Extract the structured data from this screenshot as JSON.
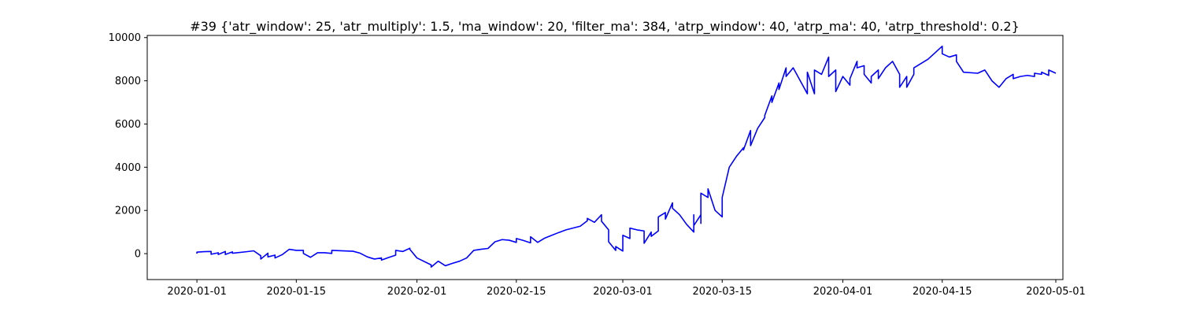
{
  "chart_data": {
    "type": "line",
    "title": "#39 {'atr_window': 25, 'atr_multiply': 1.5, 'ma_window': 20, 'filter_ma': 384, 'atrp_window': 40, 'atrp_ma': 40, 'atrp_threshold': 0.2}",
    "xlabel": "",
    "ylabel": "",
    "x_axis_type": "date",
    "xlim": [
      "2019-12-25",
      "2020-05-02"
    ],
    "ylim": [
      -1200,
      10100
    ],
    "x_ticks": [
      "2020-01-01",
      "2020-01-15",
      "2020-02-01",
      "2020-02-15",
      "2020-03-01",
      "2020-03-15",
      "2020-04-01",
      "2020-04-15",
      "2020-05-01"
    ],
    "y_ticks": [
      0,
      2000,
      4000,
      6000,
      8000,
      10000
    ],
    "grid": false,
    "legend": "none",
    "series": [
      {
        "color": "#0000ff",
        "points": [
          [
            "2020-01-01",
            0
          ],
          [
            "2020-01-01",
            70
          ],
          [
            "2020-01-02",
            90
          ],
          [
            "2020-01-03",
            100
          ],
          [
            "2020-01-03",
            -30
          ],
          [
            "2020-01-04",
            40
          ],
          [
            "2020-01-04",
            -40
          ],
          [
            "2020-01-05",
            100
          ],
          [
            "2020-01-05",
            -40
          ],
          [
            "2020-01-06",
            80
          ],
          [
            "2020-01-06",
            20
          ],
          [
            "2020-01-08",
            90
          ],
          [
            "2020-01-09",
            130
          ],
          [
            "2020-01-10",
            -100
          ],
          [
            "2020-01-10",
            -250
          ],
          [
            "2020-01-11",
            20
          ],
          [
            "2020-01-11",
            -150
          ],
          [
            "2020-01-12",
            -70
          ],
          [
            "2020-01-12",
            -200
          ],
          [
            "2020-01-13",
            -50
          ],
          [
            "2020-01-14",
            200
          ],
          [
            "2020-01-15",
            150
          ],
          [
            "2020-01-16",
            150
          ],
          [
            "2020-01-16",
            10
          ],
          [
            "2020-01-17",
            -170
          ],
          [
            "2020-01-18",
            40
          ],
          [
            "2020-01-19",
            40
          ],
          [
            "2020-01-20",
            10
          ],
          [
            "2020-01-20",
            150
          ],
          [
            "2020-01-23",
            110
          ],
          [
            "2020-01-24",
            20
          ],
          [
            "2020-01-25",
            -150
          ],
          [
            "2020-01-26",
            -250
          ],
          [
            "2020-01-27",
            -200
          ],
          [
            "2020-01-27",
            -300
          ],
          [
            "2020-01-28",
            -180
          ],
          [
            "2020-01-29",
            -70
          ],
          [
            "2020-01-29",
            150
          ],
          [
            "2020-01-30",
            100
          ],
          [
            "2020-01-31",
            250
          ],
          [
            "2020-01-31",
            200
          ],
          [
            "2020-02-01",
            -200
          ],
          [
            "2020-02-03",
            -520
          ],
          [
            "2020-02-03",
            -620
          ],
          [
            "2020-02-04",
            -350
          ],
          [
            "2020-02-05",
            -560
          ],
          [
            "2020-02-06",
            -450
          ],
          [
            "2020-02-07",
            -350
          ],
          [
            "2020-02-08",
            -200
          ],
          [
            "2020-02-09",
            150
          ],
          [
            "2020-02-10",
            200
          ],
          [
            "2020-02-11",
            240
          ],
          [
            "2020-02-12",
            550
          ],
          [
            "2020-02-13",
            650
          ],
          [
            "2020-02-14",
            620
          ],
          [
            "2020-02-15",
            520
          ],
          [
            "2020-02-15",
            700
          ],
          [
            "2020-02-16",
            610
          ],
          [
            "2020-02-17",
            500
          ],
          [
            "2020-02-17",
            780
          ],
          [
            "2020-02-18",
            520
          ],
          [
            "2020-02-19",
            720
          ],
          [
            "2020-02-20",
            850
          ],
          [
            "2020-02-21",
            980
          ],
          [
            "2020-02-22",
            1100
          ],
          [
            "2020-02-24",
            1270
          ],
          [
            "2020-02-25",
            1520
          ],
          [
            "2020-02-25",
            1630
          ],
          [
            "2020-02-26",
            1450
          ],
          [
            "2020-02-27",
            1800
          ],
          [
            "2020-02-27",
            1500
          ],
          [
            "2020-02-28",
            1100
          ],
          [
            "2020-02-28",
            550
          ],
          [
            "2020-02-29",
            150
          ],
          [
            "2020-02-29",
            330
          ],
          [
            "2020-03-01",
            120
          ],
          [
            "2020-03-01",
            850
          ],
          [
            "2020-03-02",
            700
          ],
          [
            "2020-03-02",
            1180
          ],
          [
            "2020-03-03",
            1100
          ],
          [
            "2020-03-04",
            1050
          ],
          [
            "2020-03-04",
            480
          ],
          [
            "2020-03-05",
            1000
          ],
          [
            "2020-03-05",
            800
          ],
          [
            "2020-03-06",
            1050
          ],
          [
            "2020-03-06",
            1700
          ],
          [
            "2020-03-07",
            1900
          ],
          [
            "2020-03-07",
            1600
          ],
          [
            "2020-03-08",
            2350
          ],
          [
            "2020-03-08",
            2100
          ],
          [
            "2020-03-09",
            1800
          ],
          [
            "2020-03-10",
            1350
          ],
          [
            "2020-03-11",
            1000
          ],
          [
            "2020-03-11",
            1800
          ],
          [
            "2020-03-11",
            1300
          ],
          [
            "2020-03-12",
            1800
          ],
          [
            "2020-03-12",
            1400
          ],
          [
            "2020-03-12",
            2800
          ],
          [
            "2020-03-13",
            2600
          ],
          [
            "2020-03-13",
            3000
          ],
          [
            "2020-03-14",
            2000
          ],
          [
            "2020-03-15",
            1700
          ],
          [
            "2020-03-15",
            2600
          ],
          [
            "2020-03-16",
            4000
          ],
          [
            "2020-03-17",
            4500
          ],
          [
            "2020-03-18",
            4900
          ],
          [
            "2020-03-18",
            4800
          ],
          [
            "2020-03-19",
            5700
          ],
          [
            "2020-03-19",
            5000
          ],
          [
            "2020-03-20",
            5800
          ],
          [
            "2020-03-21",
            6300
          ],
          [
            "2020-03-21",
            6400
          ],
          [
            "2020-03-22",
            7300
          ],
          [
            "2020-03-22",
            7000
          ],
          [
            "2020-03-23",
            7900
          ],
          [
            "2020-03-23",
            7600
          ],
          [
            "2020-03-24",
            8600
          ],
          [
            "2020-03-24",
            8200
          ],
          [
            "2020-03-25",
            8600
          ],
          [
            "2020-03-26",
            8000
          ],
          [
            "2020-03-27",
            7400
          ],
          [
            "2020-03-27",
            8400
          ],
          [
            "2020-03-28",
            7400
          ],
          [
            "2020-03-28",
            8500
          ],
          [
            "2020-03-29",
            8300
          ],
          [
            "2020-03-30",
            9100
          ],
          [
            "2020-03-30",
            8200
          ],
          [
            "2020-03-31",
            8500
          ],
          [
            "2020-03-31",
            7500
          ],
          [
            "2020-04-01",
            8200
          ],
          [
            "2020-04-02",
            7800
          ],
          [
            "2020-04-02",
            8100
          ],
          [
            "2020-04-03",
            8900
          ],
          [
            "2020-04-03",
            8600
          ],
          [
            "2020-04-04",
            8700
          ],
          [
            "2020-04-04",
            8300
          ],
          [
            "2020-04-05",
            7900
          ],
          [
            "2020-04-05",
            8200
          ],
          [
            "2020-04-06",
            8500
          ],
          [
            "2020-04-06",
            8100
          ],
          [
            "2020-04-07",
            8600
          ],
          [
            "2020-04-08",
            8900
          ],
          [
            "2020-04-09",
            8300
          ],
          [
            "2020-04-09",
            7700
          ],
          [
            "2020-04-10",
            8200
          ],
          [
            "2020-04-10",
            7700
          ],
          [
            "2020-04-11",
            8300
          ],
          [
            "2020-04-11",
            8600
          ],
          [
            "2020-04-12",
            8800
          ],
          [
            "2020-04-13",
            9000
          ],
          [
            "2020-04-14",
            9300
          ],
          [
            "2020-04-15",
            9600
          ],
          [
            "2020-04-15",
            9250
          ],
          [
            "2020-04-16",
            9100
          ],
          [
            "2020-04-17",
            9200
          ],
          [
            "2020-04-17",
            8900
          ],
          [
            "2020-04-18",
            8400
          ],
          [
            "2020-04-20",
            8350
          ],
          [
            "2020-04-21",
            8500
          ],
          [
            "2020-04-22",
            8000
          ],
          [
            "2020-04-23",
            7700
          ],
          [
            "2020-04-24",
            8100
          ],
          [
            "2020-04-25",
            8300
          ],
          [
            "2020-04-25",
            8100
          ],
          [
            "2020-04-26",
            8200
          ],
          [
            "2020-04-27",
            8250
          ],
          [
            "2020-04-28",
            8200
          ],
          [
            "2020-04-28",
            8350
          ],
          [
            "2020-04-29",
            8300
          ],
          [
            "2020-04-29",
            8400
          ],
          [
            "2020-04-30",
            8250
          ],
          [
            "2020-04-30",
            8500
          ],
          [
            "2020-05-01",
            8350
          ]
        ]
      }
    ]
  }
}
